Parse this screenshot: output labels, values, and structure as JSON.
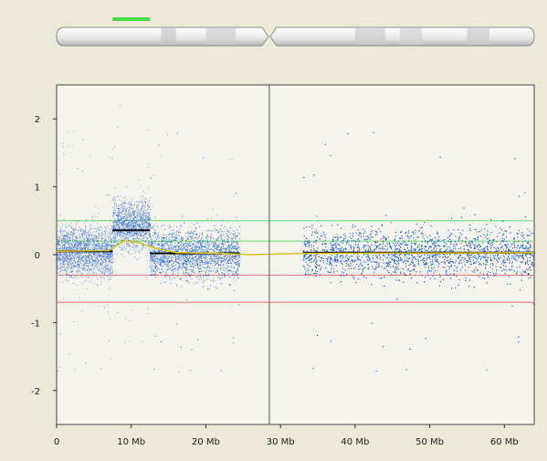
{
  "chart_data": {
    "type": "scatter",
    "title": "",
    "xlabel": "",
    "ylabel": "",
    "xlim": [
      0,
      64
    ],
    "ylim": [
      -2.5,
      2.5
    ],
    "x_ticks": [
      {
        "value": 0,
        "label": "0"
      },
      {
        "value": 10,
        "label": "10 Mb"
      },
      {
        "value": 20,
        "label": "20 Mb"
      },
      {
        "value": 30,
        "label": "30 Mb"
      },
      {
        "value": 40,
        "label": "40 Mb"
      },
      {
        "value": 50,
        "label": "50 Mb"
      },
      {
        "value": 60,
        "label": "60 Mb"
      }
    ],
    "y_ticks": [
      {
        "value": 2,
        "label": "2"
      },
      {
        "value": 1,
        "label": "1"
      },
      {
        "value": 0,
        "label": "0"
      },
      {
        "value": -1,
        "label": "-1"
      },
      {
        "value": -2,
        "label": "-2"
      }
    ],
    "centromere_mb": 28.5,
    "threshold_lines": [
      {
        "y": 0.5,
        "color": "#66dd66"
      },
      {
        "y": 0.2,
        "color": "#66dd66"
      },
      {
        "y": -0.3,
        "color": "#e07070"
      },
      {
        "y": -0.7,
        "color": "#e07070"
      }
    ],
    "probe_regions": [
      {
        "start": 0,
        "end": 7.5,
        "mean": 0.05,
        "sd": 0.2
      },
      {
        "start": 7.5,
        "end": 12.5,
        "mean": 0.45,
        "sd": 0.2
      },
      {
        "start": 12.5,
        "end": 24.5,
        "mean": 0.02,
        "sd": 0.2
      },
      {
        "start": 33,
        "end": 64,
        "mean": 0.03,
        "sd": 0.2
      }
    ],
    "segments": [
      {
        "start": 0,
        "end": 7.5,
        "value": 0.05
      },
      {
        "start": 7.5,
        "end": 12.5,
        "value": 0.36
      },
      {
        "start": 12.5,
        "end": 24.5,
        "value": 0.02
      },
      {
        "start": 33,
        "end": 64,
        "value": 0.03
      }
    ],
    "colors": {
      "points": "#1f5fd6",
      "segment": "#000000",
      "smooth": "#d8c020",
      "centromere": "#555555"
    }
  },
  "ideogram": {
    "highlight_mb": [
      7.5,
      12.5
    ],
    "highlight_color": "#44dd44",
    "bands": [
      {
        "start": 14,
        "end": 16,
        "shade": "#c8c8c8"
      },
      {
        "start": 20,
        "end": 24,
        "shade": "#cfcfcf"
      },
      {
        "start": 40,
        "end": 44,
        "shade": "#cccccc"
      },
      {
        "start": 46,
        "end": 49,
        "shade": "#d2d2d2"
      },
      {
        "start": 55,
        "end": 58,
        "shade": "#cccccc"
      }
    ]
  }
}
